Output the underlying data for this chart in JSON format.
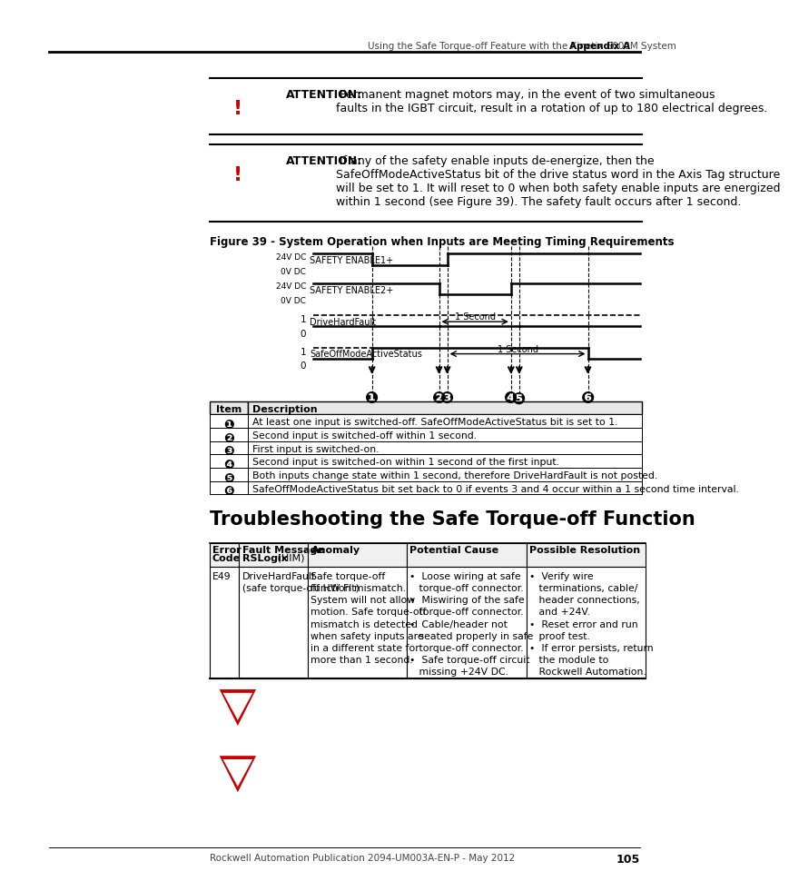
{
  "header_text": "Using the Safe Torque-off Feature with the Kinetix 6000M System",
  "header_bold": "Appendix A",
  "footer_text": "Rockwell Automation Publication 2094-UM003A-EN-P - May 2012",
  "footer_page": "105",
  "attention1_bold": "ATTENTION:",
  "attention1_text": " Permanent magnet motors may, in the event of two simultaneous\nfaults in the IGBT circuit, result in a rotation of up to 180 electrical degrees.",
  "attention2_bold": "ATTENTION:",
  "attention2_text": " If any of the safety enable inputs de-energize, then the\nSafeOffModeActiveStatus bit of the drive status word in the Axis Tag structure\nwill be set to 1. It will reset to 0 when both safety enable inputs are energized\nwithin 1 second (see Figure 39). The safety fault occurs after 1 second.",
  "figure_title": "Figure 39 - System Operation when Inputs are Meeting Timing Requirements",
  "section_title": "Troubleshooting the Safe Torque-off Function",
  "table1_headers": [
    "Item",
    "Description"
  ],
  "table1_rows": [
    [
      "1",
      "At least one input is switched-off. SafeOffModeActiveStatus bit is set to 1."
    ],
    [
      "2",
      "Second input is switched-off within 1 second."
    ],
    [
      "3",
      "First input is switched-on."
    ],
    [
      "4",
      "Second input is switched-on within 1 second of the first input."
    ],
    [
      "5",
      "Both inputs change state within 1 second, therefore DriveHardFault is not posted."
    ],
    [
      "6",
      "SafeOffModeActiveStatus bit set back to 0 if events 3 and 4 occur within a 1 second time interval."
    ]
  ],
  "table2_headers": [
    "Error\nCode",
    "Fault Message\nRSLogix (HIM)",
    "Anomaly",
    "Potential Cause",
    "Possible Resolution"
  ],
  "table2_header_bold": [
    "",
    "RSLogix",
    "",
    "",
    ""
  ],
  "table2_row": {
    "code": "E49",
    "fault_normal": "DriveHardFault\n(safe torque-off HW Flt)",
    "anomaly": "Safe torque-off\nfunction mismatch.\nSystem will not allow\nmotion. Safe torque-off\nmismatch is detected\nwhen safety inputs are\nin a different state for\nmore than 1 second.",
    "cause": "•  Loose wiring at safe\n   torque-off connector.\n•  Miswiring of the safe\n   torque-off connector.\n•  Cable/header not\n   seated properly in safe\n   torque-off connector.\n•  Safe torque-off circuit\n   missing +24V DC.",
    "resolution": "•  Verify wire\n   terminations, cable/\n   header connections,\n   and +24V.\n•  Reset error and run\n   proof test.\n•  If error persists, return\n   the module to\n   Rockwell Automation."
  },
  "bg_color": "#ffffff",
  "red_color": "#cc0000"
}
